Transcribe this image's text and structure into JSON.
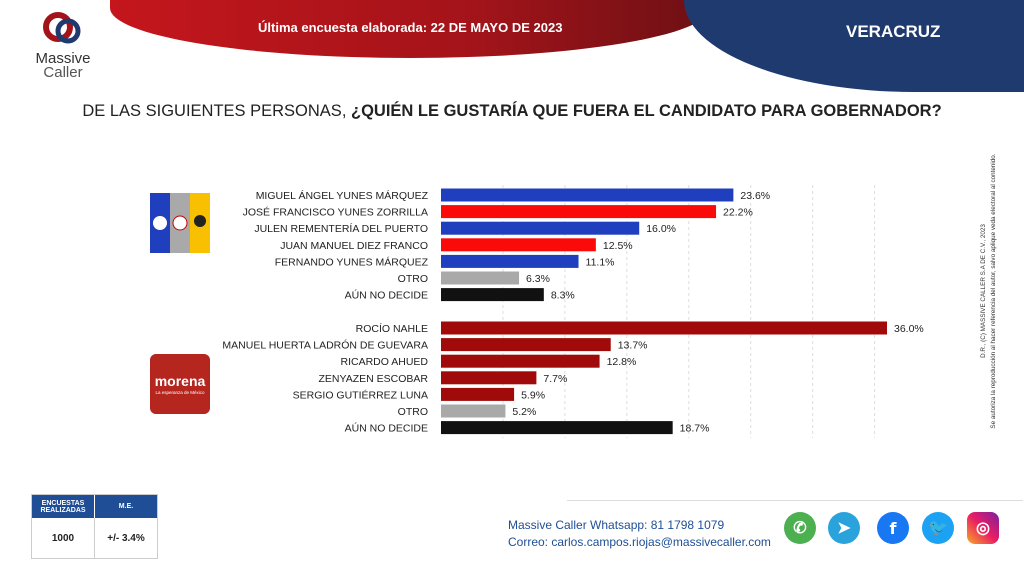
{
  "header": {
    "subtitle": "Última encuesta elaborada: 22 DE MAYO DE 2023",
    "state": "VERACRUZ",
    "logo_line1": "Massive",
    "logo_line2": "Caller"
  },
  "question": {
    "plain": "DE LAS SIGUIENTES PERSONAS, ",
    "bold": "¿QUIÉN LE GUSTARÍA QUE FUERA EL CANDIDATO PARA GOBERNADOR?"
  },
  "side_note": {
    "line1": "D.R., (C) MASSIVE CALLER S.A DE C.V., 2023",
    "line2": "Se autoriza la reproducción al hacer referencia del autor, salvo aplique veda electoral al contenido."
  },
  "chart_data": {
    "type": "bar",
    "orientation": "horizontal",
    "xlim": [
      0,
      36
    ],
    "grid": "vertical dashed every 5%",
    "groups": [
      {
        "logo": "PAN PRI PRD",
        "colors": [
          "#1f3fbf",
          "#a9a9a9",
          "#f8c000"
        ],
        "categories": [
          "MIGUEL ÁNGEL YUNES MÁRQUEZ",
          "JOSÉ FRANCISCO YUNES ZORRILLA",
          "JULEN REMENTERÍA DEL PUERTO",
          "JUAN MANUEL DIEZ FRANCO",
          "FERNANDO YUNES MÁRQUEZ",
          "OTRO",
          "AÚN NO DECIDE"
        ],
        "values": [
          23.6,
          22.2,
          16.0,
          12.5,
          11.1,
          6.3,
          8.3
        ],
        "labels": [
          "23.6%",
          "22.2%",
          "16.0%",
          "12.5%",
          "11.1%",
          "6.3%",
          "8.3%"
        ],
        "bar_colors": [
          "#1f3fbf",
          "#fb0a0a",
          "#1f3fbf",
          "#fb0a0a",
          "#1f3fbf",
          "#a9a9a9",
          "#111111"
        ]
      },
      {
        "logo": "morena",
        "logo_tagline": "La esperanza de México",
        "categories": [
          "ROCÍO NAHLE",
          "MANUEL HUERTA LADRÓN DE GUEVARA",
          "RICARDO AHUED",
          "ZENYAZEN ESCOBAR",
          "SERGIO GUTIÉRREZ LUNA",
          "OTRO",
          "AÚN NO DECIDE"
        ],
        "values": [
          36.0,
          13.7,
          12.8,
          7.7,
          5.9,
          5.2,
          18.7
        ],
        "labels": [
          "36.0%",
          "13.7%",
          "12.8%",
          "7.7%",
          "5.9%",
          "5.2%",
          "18.7%"
        ],
        "bar_colors": [
          "#a00a0a",
          "#a00a0a",
          "#a00a0a",
          "#a00a0a",
          "#a00a0a",
          "#a9a9a9",
          "#111111"
        ]
      }
    ]
  },
  "field": {
    "h1": "ENCUESTAS REALIZADAS",
    "h2": "M.E.",
    "v1": "1000",
    "v2": "+/- 3.4%"
  },
  "contact": {
    "whatsapp": "Massive Caller Whatsapp: 81 1798 1079",
    "email": "Correo: carlos.campos.riojas@massivecaller.com"
  },
  "social": [
    "whatsapp-icon",
    "telegram-icon",
    "facebook-icon",
    "twitter-icon",
    "instagram-icon"
  ]
}
